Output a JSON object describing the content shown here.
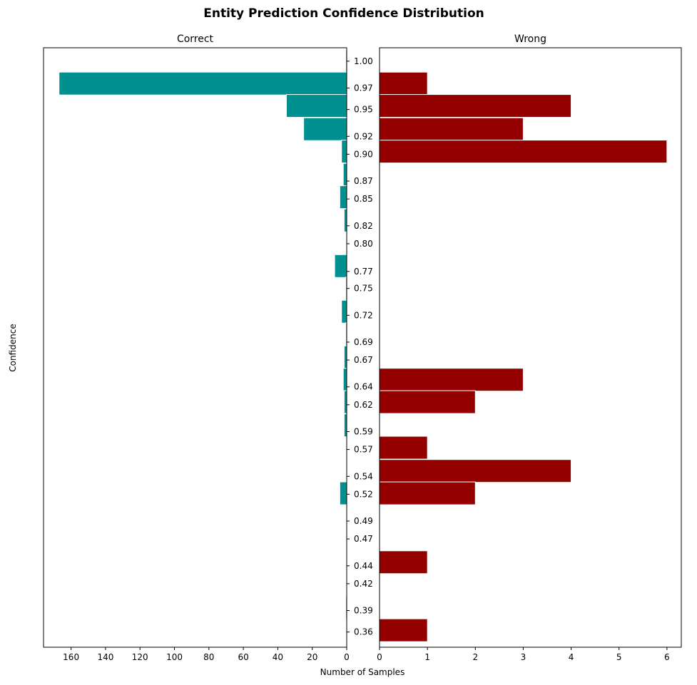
{
  "chart_data": {
    "type": "bar",
    "orientation": "horizontal-back-to-back",
    "title": "Entity Prediction Confidence Distribution",
    "ylabel": "Confidence",
    "xlabel": "Number of Samples",
    "ylim": [
      0.345,
      1.015
    ],
    "y_ticks": [
      "1.00",
      "0.97",
      "0.95",
      "0.92",
      "0.90",
      "0.87",
      "0.85",
      "0.82",
      "0.80",
      "0.77",
      "0.75",
      "0.72",
      "0.69",
      "0.67",
      "0.64",
      "0.62",
      "0.59",
      "0.57",
      "0.54",
      "0.52",
      "0.49",
      "0.47",
      "0.44",
      "0.42",
      "0.39",
      "0.36"
    ],
    "y_tick_values": [
      1.0,
      0.97,
      0.946,
      0.916,
      0.896,
      0.866,
      0.846,
      0.816,
      0.796,
      0.765,
      0.746,
      0.716,
      0.686,
      0.666,
      0.636,
      0.616,
      0.586,
      0.566,
      0.536,
      0.516,
      0.486,
      0.466,
      0.436,
      0.416,
      0.386,
      0.362
    ],
    "bin_width": 0.0255,
    "panels": [
      {
        "name": "Correct",
        "color": "#009090",
        "direction": "left",
        "xlim": [
          176,
          0
        ],
        "x_ticks": [
          160,
          140,
          120,
          100,
          80,
          60,
          40,
          20,
          0
        ],
        "bars": [
          {
            "y": 1.0,
            "value": 0.5
          },
          {
            "y": 0.975,
            "value": 167
          },
          {
            "y": 0.95,
            "value": 35
          },
          {
            "y": 0.924,
            "value": 25
          },
          {
            "y": 0.899,
            "value": 3
          },
          {
            "y": 0.873,
            "value": 2
          },
          {
            "y": 0.848,
            "value": 4
          },
          {
            "y": 0.822,
            "value": 1.5
          },
          {
            "y": 0.771,
            "value": 7
          },
          {
            "y": 0.746,
            "value": 0.5
          },
          {
            "y": 0.72,
            "value": 3
          },
          {
            "y": 0.695,
            "value": 0.5
          },
          {
            "y": 0.669,
            "value": 1.5
          },
          {
            "y": 0.644,
            "value": 2
          },
          {
            "y": 0.619,
            "value": 1.5
          },
          {
            "y": 0.593,
            "value": 1.5
          },
          {
            "y": 0.517,
            "value": 4
          },
          {
            "y": 0.389,
            "value": 0.5
          }
        ]
      },
      {
        "name": "Wrong",
        "color": "#940000",
        "direction": "right",
        "xlim": [
          0,
          6.3
        ],
        "x_ticks": [
          0,
          1,
          2,
          3,
          4,
          5,
          6
        ],
        "bars": [
          {
            "y": 0.975,
            "value": 1
          },
          {
            "y": 0.95,
            "value": 4
          },
          {
            "y": 0.924,
            "value": 3
          },
          {
            "y": 0.899,
            "value": 6
          },
          {
            "y": 0.644,
            "value": 3
          },
          {
            "y": 0.619,
            "value": 2
          },
          {
            "y": 0.568,
            "value": 1
          },
          {
            "y": 0.542,
            "value": 4
          },
          {
            "y": 0.517,
            "value": 2
          },
          {
            "y": 0.44,
            "value": 1
          },
          {
            "y": 0.364,
            "value": 1
          }
        ]
      }
    ]
  }
}
